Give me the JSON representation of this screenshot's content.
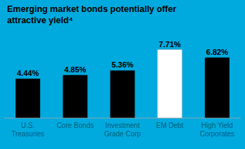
{
  "chart_data": {
    "type": "bar",
    "title": "Emerging market bonds potentially offer\nattractive yield⁴",
    "categories": [
      "U.S.\nTreasuries",
      "Core Bonds",
      "Investment\nGrade Corp",
      "EM Debt",
      "High Yield\nCorporates"
    ],
    "values": [
      4.44,
      4.85,
      5.36,
      7.71,
      6.82
    ],
    "value_labels": [
      "4.44%",
      "4.85%",
      "5.36%",
      "7.71%",
      "6.82%"
    ],
    "colors": [
      "#000000",
      "#000000",
      "#000000",
      "#ffffff",
      "#000000"
    ],
    "ylim": [
      0,
      9.5
    ],
    "grid": false,
    "data_labels": true,
    "tick_labels": "x"
  }
}
